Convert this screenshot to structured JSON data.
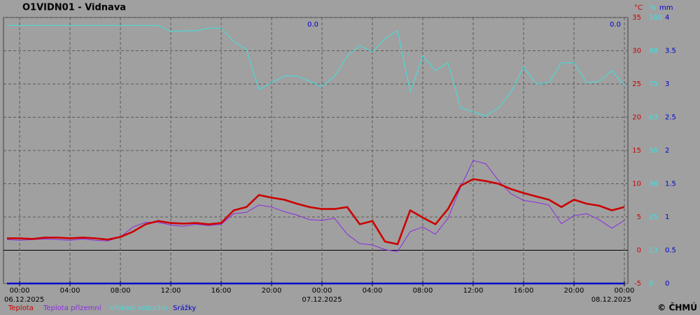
{
  "chart_data": {
    "type": "line",
    "title": "O1VIDN01 - Vidnava",
    "x": [
      -1,
      0,
      1,
      2,
      3,
      4,
      5,
      6,
      7,
      8,
      9,
      10,
      11,
      12,
      13,
      14,
      15,
      16,
      17,
      18,
      19,
      20,
      21,
      22,
      23,
      24,
      25,
      26,
      27,
      28,
      29,
      30,
      31,
      32,
      33,
      34,
      35,
      36,
      37,
      38,
      39,
      40,
      41,
      42,
      43,
      44,
      45,
      46,
      47,
      48
    ],
    "xlim": [
      -1.28,
      48.28
    ],
    "xticks": [
      {
        "value": 0,
        "label": "00:00"
      },
      {
        "value": 4,
        "label": "04:00"
      },
      {
        "value": 8,
        "label": "08:00"
      },
      {
        "value": 12,
        "label": "12:00"
      },
      {
        "value": 16,
        "label": "16:00"
      },
      {
        "value": 20,
        "label": "20:00"
      },
      {
        "value": 24,
        "label": "00:00"
      },
      {
        "value": 28,
        "label": "04:00"
      },
      {
        "value": 32,
        "label": "08:00"
      },
      {
        "value": 36,
        "label": "12:00"
      },
      {
        "value": 40,
        "label": "16:00"
      },
      {
        "value": 44,
        "label": "20:00"
      },
      {
        "value": 48,
        "label": "00:00"
      }
    ],
    "date_labels": [
      {
        "value": 0,
        "label": "06.12.2025"
      },
      {
        "value": 24,
        "label": "07.12.2025"
      },
      {
        "value": 48,
        "label": "08.12.2025"
      }
    ],
    "ylabel": "°C",
    "ylim": [
      -5,
      35
    ],
    "yticks": [
      -5,
      0,
      5,
      10,
      15,
      20,
      25,
      30,
      35
    ],
    "y2label": "%",
    "y2lim": [
      0,
      100
    ],
    "y2ticks": [
      0,
      {
        "value": 12.5,
        "label": "13"
      },
      25,
      {
        "value": 37.5,
        "label": "38"
      },
      50,
      {
        "value": 62.5,
        "label": "63"
      },
      75,
      {
        "value": 87.5,
        "label": "88"
      },
      100
    ],
    "y3label": "mm",
    "y3lim": [
      0,
      4
    ],
    "y3ticks": [
      0,
      0.5,
      1,
      1.5,
      2,
      2.5,
      3,
      3.5,
      4
    ],
    "grid": true,
    "series": [
      {
        "name": "Teplota",
        "color": "#cc0000",
        "axis": "y",
        "values": [
          1.8,
          1.8,
          1.7,
          1.9,
          1.9,
          1.8,
          1.9,
          1.8,
          1.6,
          2.0,
          2.8,
          3.9,
          4.4,
          4.1,
          4.0,
          4.1,
          3.9,
          4.1,
          6.0,
          6.5,
          8.3,
          7.9,
          7.6,
          7.0,
          6.5,
          6.2,
          6.2,
          6.5,
          3.9,
          4.4,
          1.3,
          0.9,
          6.0,
          4.9,
          3.9,
          6.2,
          9.7,
          10.7,
          10.4,
          10.0,
          9.2,
          8.6,
          8.1,
          7.6,
          6.5,
          7.6,
          7.0,
          6.7,
          6.0,
          6.5
        ]
      },
      {
        "name": "Teplota přízemní",
        "color": "#8a2be2",
        "axis": "y",
        "values": [
          1.6,
          1.5,
          1.6,
          1.7,
          1.6,
          1.5,
          1.7,
          1.5,
          1.4,
          2.0,
          3.5,
          4.2,
          4.2,
          3.8,
          3.6,
          3.9,
          3.7,
          3.9,
          5.5,
          5.7,
          6.8,
          6.5,
          5.8,
          5.3,
          4.6,
          4.5,
          4.8,
          2.4,
          1.0,
          0.8,
          0.1,
          -0.2,
          2.8,
          3.5,
          2.4,
          4.8,
          9.5,
          13.5,
          13.0,
          10.5,
          8.5,
          7.5,
          7.2,
          6.8,
          4.0,
          5.2,
          5.5,
          4.6,
          3.3,
          4.5
        ]
      },
      {
        "name": "Vlhkost vzduchu",
        "color": "#40e0e0",
        "axis": "y2",
        "values": [
          97,
          97,
          97,
          97,
          97,
          97,
          97,
          97,
          97,
          97,
          97,
          97,
          97,
          94.7,
          95,
          95,
          96,
          96,
          91,
          88,
          73,
          75.5,
          78,
          78,
          76,
          74,
          78,
          85.5,
          89.5,
          87,
          92,
          95,
          72,
          85.5,
          80,
          83,
          66,
          64.5,
          63,
          66,
          72,
          81.5,
          75,
          75.5,
          83,
          83,
          75.5,
          76,
          80,
          74.5
        ]
      },
      {
        "name": "Srážky",
        "color": "#0000cc",
        "axis": "y3",
        "values": [
          0,
          0,
          0,
          0,
          0,
          0,
          0,
          0,
          0,
          0,
          0,
          0,
          0,
          0,
          0,
          0,
          0,
          0,
          0,
          0,
          0,
          0,
          0,
          0,
          0,
          0,
          0,
          0,
          0,
          0,
          0,
          0,
          0,
          0,
          0,
          0,
          0,
          0,
          0,
          0,
          0,
          0,
          0,
          0,
          0,
          0,
          0,
          0,
          0,
          0
        ]
      }
    ],
    "annotations": [
      {
        "text": "0.0",
        "x": 24
      },
      {
        "text": "0.0",
        "x": 48
      }
    ],
    "copyright": "© ČHMÚ"
  }
}
